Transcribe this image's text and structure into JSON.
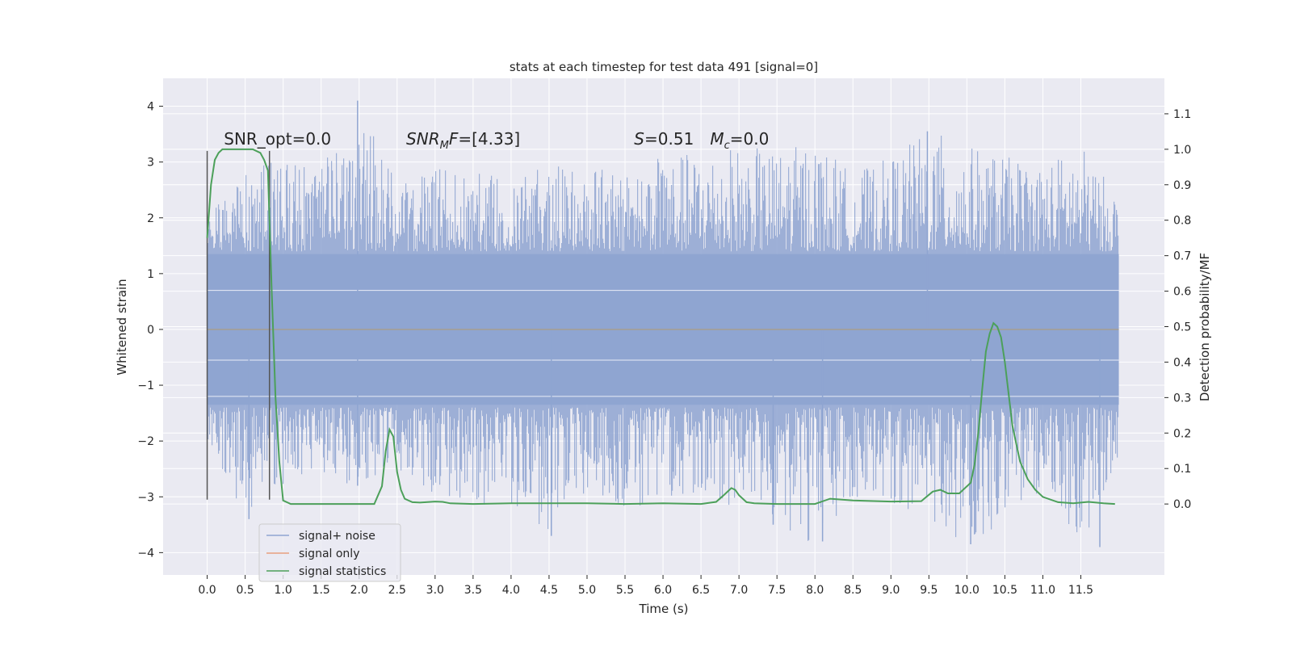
{
  "chart_data": {
    "type": "line",
    "title": "stats at each timestep for test data 491 [signal=0]",
    "xlabel": "Time (s)",
    "ylabel": "Whitened strain",
    "ylabel_right": "Detection probability/MF",
    "xlim": [
      -0.58,
      12.6
    ],
    "ylim": [
      -4.4,
      4.5
    ],
    "ylim_right": [
      -0.2,
      1.2
    ],
    "x_ticks": [
      0.0,
      0.5,
      1.0,
      1.5,
      2.0,
      2.5,
      3.0,
      3.5,
      4.0,
      4.5,
      5.0,
      5.5,
      6.0,
      6.5,
      7.0,
      7.5,
      8.0,
      8.5,
      9.0,
      9.5,
      10.0,
      10.5,
      11.0,
      11.5
    ],
    "x_tick_labels": [
      "0.0",
      "0.5",
      "1.0",
      "1.5",
      "2.0",
      "2.5",
      "3.0",
      "3.5",
      "4.0",
      "4.5",
      "5.0",
      "5.5",
      "6.0",
      "6.5",
      "7.0",
      "7.5",
      "8.0",
      "8.5",
      "9.0",
      "9.5",
      "10.0",
      "10.5",
      "11.0",
      "11.5"
    ],
    "y_ticks": [
      -4,
      -3,
      -2,
      -1,
      0,
      1,
      2,
      3,
      4
    ],
    "y_tick_labels": [
      "−4",
      "−3",
      "−2",
      "−1",
      "0",
      "1",
      "2",
      "3",
      "4"
    ],
    "y_right_ticks": [
      0.0,
      0.1,
      0.2,
      0.3,
      0.4,
      0.5,
      0.6,
      0.7,
      0.8,
      0.9,
      1.0,
      1.1
    ],
    "y_right_tick_labels": [
      "0.0",
      "0.1",
      "0.2",
      "0.3",
      "0.4",
      "0.5",
      "0.6",
      "0.7",
      "0.8",
      "0.9",
      "1.0",
      "1.1"
    ],
    "grid": true,
    "legend_placement": "lower-left",
    "series": [
      {
        "name": "signal+ noise",
        "color": "#8fa5d1",
        "axis": "left",
        "style": "dense noise trace",
        "x_range": [
          0.0,
          12.0
        ],
        "envelope": {
          "x": [
            0.0,
            0.5,
            1.0,
            1.5,
            2.0,
            2.5,
            3.0,
            3.5,
            4.0,
            4.5,
            5.0,
            5.5,
            6.0,
            6.5,
            7.0,
            7.5,
            8.0,
            8.5,
            9.0,
            9.5,
            10.0,
            10.5,
            11.0,
            11.5,
            12.0
          ],
          "upper": [
            2.2,
            2.8,
            3.2,
            2.9,
            4.1,
            2.6,
            2.9,
            2.8,
            2.8,
            2.9,
            3.0,
            2.8,
            3.1,
            3.2,
            3.3,
            3.2,
            3.4,
            2.8,
            3.1,
            3.6,
            3.3,
            3.1,
            3.0,
            3.3,
            2.4
          ],
          "lower": [
            -2.0,
            -3.4,
            -2.8,
            -2.6,
            -2.9,
            -2.5,
            -3.0,
            -3.2,
            -3.2,
            -3.7,
            -2.9,
            -3.4,
            -3.0,
            -3.0,
            -3.2,
            -3.5,
            -3.9,
            -3.0,
            -3.1,
            -3.4,
            -3.9,
            -3.5,
            -3.0,
            -3.9,
            -2.7
          ]
        },
        "points": [
          [
            1.98,
            4.1
          ],
          [
            1.98,
            -2.8
          ],
          [
            9.48,
            3.55
          ],
          [
            11.75,
            -3.9
          ],
          [
            10.05,
            -3.85
          ],
          [
            8.1,
            -3.8
          ],
          [
            4.53,
            -3.7
          ],
          [
            0.55,
            -3.4
          ],
          [
            7.45,
            -3.5
          ]
        ]
      },
      {
        "name": "signal only",
        "color": "#e8a07f",
        "axis": "left",
        "x": [
          0.0,
          12.0
        ],
        "y": [
          0.0,
          0.0
        ]
      },
      {
        "name": "signal statistics",
        "color": "#4ca05a",
        "axis": "right",
        "x": [
          0.0,
          0.05,
          0.1,
          0.15,
          0.2,
          0.3,
          0.4,
          0.5,
          0.6,
          0.7,
          0.75,
          0.8,
          0.85,
          0.9,
          0.95,
          1.0,
          1.1,
          1.5,
          2.0,
          2.2,
          2.3,
          2.35,
          2.4,
          2.45,
          2.5,
          2.55,
          2.6,
          2.7,
          2.8,
          3.0,
          3.1,
          3.2,
          3.5,
          4.0,
          4.5,
          5.0,
          5.5,
          6.0,
          6.5,
          6.7,
          6.8,
          6.9,
          6.95,
          7.0,
          7.1,
          7.2,
          7.5,
          8.0,
          8.2,
          8.5,
          9.0,
          9.4,
          9.55,
          9.65,
          9.75,
          9.9,
          10.05,
          10.1,
          10.15,
          10.2,
          10.25,
          10.3,
          10.35,
          10.4,
          10.45,
          10.5,
          10.55,
          10.6,
          10.7,
          10.8,
          10.9,
          11.0,
          11.2,
          11.4,
          11.6,
          11.8,
          11.95
        ],
        "y": [
          0.75,
          0.9,
          0.97,
          0.99,
          1.0,
          1.0,
          1.0,
          1.0,
          1.0,
          0.99,
          0.97,
          0.94,
          0.6,
          0.3,
          0.12,
          0.01,
          0.0,
          0.0,
          0.0,
          0.0,
          0.05,
          0.15,
          0.21,
          0.19,
          0.09,
          0.04,
          0.015,
          0.005,
          0.004,
          0.007,
          0.006,
          0.002,
          0.0,
          0.002,
          0.002,
          0.002,
          0.0,
          0.002,
          0.0,
          0.006,
          0.025,
          0.045,
          0.04,
          0.025,
          0.005,
          0.002,
          0.0,
          0.0,
          0.015,
          0.01,
          0.007,
          0.008,
          0.035,
          0.04,
          0.03,
          0.03,
          0.06,
          0.11,
          0.2,
          0.32,
          0.43,
          0.48,
          0.51,
          0.5,
          0.47,
          0.4,
          0.31,
          0.22,
          0.12,
          0.07,
          0.04,
          0.02,
          0.005,
          0.002,
          0.006,
          0.002,
          0.0
        ]
      }
    ],
    "vertical_lines": [
      {
        "x": 0.0,
        "y_range": [
          -3.05,
          3.2
        ],
        "color": "#555555"
      },
      {
        "x": 0.82,
        "y_range": [
          -3.05,
          3.2
        ],
        "color": "#555555"
      }
    ],
    "annotations": [
      {
        "text": "SNR_opt=0.0",
        "x": 0.22,
        "y": 3.2
      },
      {
        "text": "SNR_MF=[4.33]",
        "math": "snr_mf",
        "x": 2.62,
        "y": 3.2
      },
      {
        "text": "S=0.51",
        "math": "s",
        "x": 5.62,
        "y": 3.2
      },
      {
        "text": "M_c=0.0",
        "math": "mc",
        "x": 6.62,
        "y": 3.2
      }
    ]
  }
}
